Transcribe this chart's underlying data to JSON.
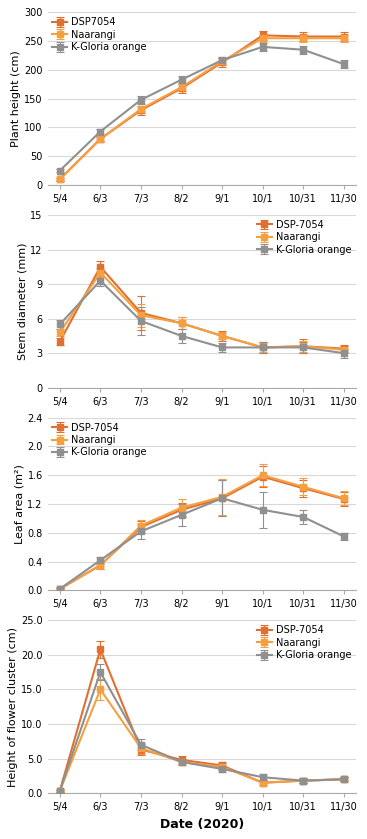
{
  "x_labels": [
    "5/4",
    "6/3",
    "7/3",
    "8/2",
    "9/1",
    "10/1",
    "10/31",
    "11/30"
  ],
  "x_positions": [
    0,
    1,
    2,
    3,
    4,
    5,
    6,
    7
  ],
  "plot1": {
    "ylabel": "Plant height (cm)",
    "ylim": [
      0,
      300
    ],
    "yticks": [
      0,
      50,
      100,
      150,
      200,
      250,
      300
    ],
    "legend_loc": "upper left",
    "series": [
      {
        "label": "DSP7054",
        "color": "#e07030",
        "marker": "s",
        "values": [
          10,
          80,
          130,
          168,
          213,
          260,
          258,
          258
        ],
        "yerr": [
          3,
          5,
          8,
          8,
          8,
          8,
          8,
          8
        ]
      },
      {
        "label": "Naarangi",
        "color": "#f5a040",
        "marker": "s",
        "values": [
          10,
          80,
          132,
          170,
          215,
          255,
          255,
          255
        ],
        "yerr": [
          2,
          4,
          6,
          6,
          6,
          6,
          6,
          6
        ]
      },
      {
        "label": "K-Gloria orange",
        "color": "#909090",
        "marker": "s",
        "values": [
          25,
          93,
          148,
          183,
          217,
          240,
          235,
          210
        ],
        "yerr": [
          3,
          5,
          7,
          6,
          6,
          7,
          7,
          7
        ]
      }
    ]
  },
  "plot2": {
    "ylabel": "Stem diameter (mm)",
    "ylim": [
      0,
      15
    ],
    "yticks": [
      0,
      3,
      6,
      9,
      12,
      15
    ],
    "legend_loc": "upper right",
    "series": [
      {
        "label": "DSP-7054",
        "color": "#e07030",
        "marker": "s",
        "values": [
          4.0,
          10.5,
          6.5,
          5.6,
          4.5,
          3.5,
          3.6,
          3.4
        ],
        "yerr": [
          0.3,
          0.5,
          1.5,
          0.5,
          0.4,
          0.5,
          0.6,
          0.3
        ]
      },
      {
        "label": "Naarangi",
        "color": "#f5a040",
        "marker": "s",
        "values": [
          4.8,
          10.0,
          6.3,
          5.6,
          4.5,
          3.5,
          3.6,
          3.3
        ],
        "yerr": [
          0.3,
          0.4,
          1.0,
          0.5,
          0.3,
          0.4,
          0.5,
          0.3
        ]
      },
      {
        "label": "K-Gloria orange",
        "color": "#909090",
        "marker": "s",
        "values": [
          5.5,
          9.3,
          5.8,
          4.5,
          3.5,
          3.5,
          3.5,
          3.0
        ],
        "yerr": [
          0.4,
          0.5,
          1.2,
          0.6,
          0.4,
          0.5,
          0.5,
          0.4
        ]
      }
    ]
  },
  "plot3": {
    "ylabel": "Leaf area (m²)",
    "ylim": [
      0.0,
      2.4
    ],
    "yticks": [
      0.0,
      0.4,
      0.8,
      1.2,
      1.6,
      2.0,
      2.4
    ],
    "legend_loc": "upper left",
    "series": [
      {
        "label": "DSP-7054",
        "color": "#e07030",
        "marker": "s",
        "values": [
          0.02,
          0.35,
          0.88,
          1.12,
          1.28,
          1.58,
          1.42,
          1.27
        ],
        "yerr": [
          0.01,
          0.05,
          0.08,
          0.1,
          0.25,
          0.15,
          0.12,
          0.1
        ]
      },
      {
        "label": "Naarangi",
        "color": "#f5a040",
        "marker": "s",
        "values": [
          0.02,
          0.35,
          0.9,
          1.15,
          1.3,
          1.6,
          1.44,
          1.28
        ],
        "yerr": [
          0.01,
          0.05,
          0.08,
          0.12,
          0.25,
          0.15,
          0.12,
          0.1
        ]
      },
      {
        "label": "K-Gloria orange",
        "color": "#909090",
        "marker": "s",
        "values": [
          0.02,
          0.42,
          0.82,
          1.05,
          1.28,
          1.12,
          1.02,
          0.75
        ],
        "yerr": [
          0.01,
          0.05,
          0.1,
          0.15,
          0.25,
          0.25,
          0.1,
          0.05
        ]
      }
    ]
  },
  "plot4": {
    "ylabel": "Height of flower cluster (cm)",
    "ylim": [
      0.0,
      25.0
    ],
    "yticks": [
      0.0,
      5.0,
      10.0,
      15.0,
      20.0,
      25.0
    ],
    "legend_loc": "upper right",
    "series": [
      {
        "label": "DSP-7054",
        "color": "#e07030",
        "marker": "s",
        "values": [
          0.3,
          20.8,
          6.3,
          4.8,
          4.0,
          1.5,
          1.8,
          2.0
        ],
        "yerr": [
          0.1,
          1.2,
          0.8,
          0.5,
          0.5,
          0.4,
          0.4,
          0.3
        ]
      },
      {
        "label": "Naarangi",
        "color": "#f5a040",
        "marker": "s",
        "values": [
          0.3,
          15.0,
          6.5,
          4.5,
          3.8,
          1.5,
          1.8,
          2.0
        ],
        "yerr": [
          0.1,
          1.5,
          0.8,
          0.5,
          0.5,
          0.4,
          0.4,
          0.3
        ]
      },
      {
        "label": "K-Gloria orange",
        "color": "#909090",
        "marker": "s",
        "values": [
          0.3,
          17.5,
          7.0,
          4.5,
          3.5,
          2.3,
          1.8,
          2.0
        ],
        "yerr": [
          0.1,
          1.2,
          0.8,
          0.5,
          0.5,
          0.4,
          0.4,
          0.3
        ]
      }
    ]
  },
  "xlabel": "Date (2020)",
  "line_width": 1.5,
  "marker_size": 4,
  "capsize": 3,
  "legend_fontsize": 7,
  "axis_fontsize": 8,
  "tick_fontsize": 7,
  "grid_color": "#d8d8d8",
  "background_color": "#ffffff"
}
